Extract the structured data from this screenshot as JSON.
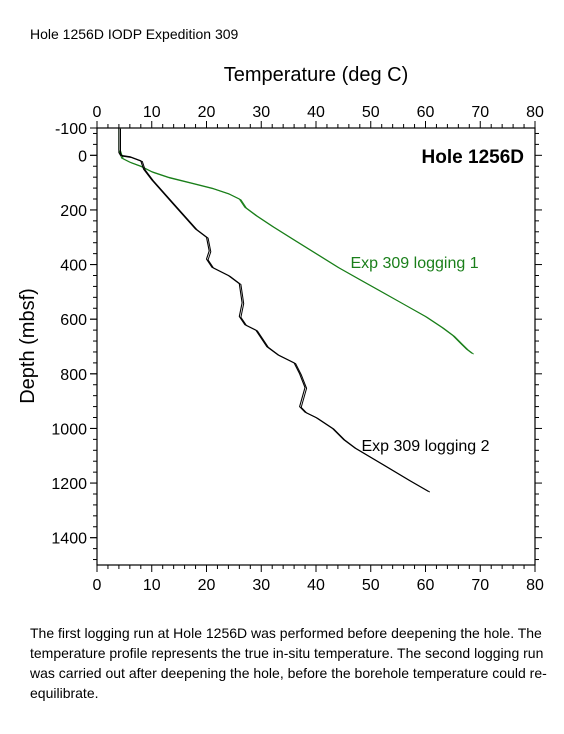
{
  "page": {
    "header": "Hole 1256D IODP Expedition 309",
    "caption": "The first logging run at Hole 1256D was performed before deepening the hole. The temperature profile represents the true in-situ temperature. The second logging run was carried out after deepening the hole, before the borehole temperature could re-equilibrate."
  },
  "chart_data": {
    "type": "line",
    "title": "Hole 1256D",
    "xlabel": "Temperature (deg C)",
    "ylabel": "Depth (mbsf)",
    "xlim": [
      0,
      80
    ],
    "ylim": [
      -100,
      1500
    ],
    "y_inverted": true,
    "x_ticks": [
      0,
      10,
      20,
      30,
      40,
      50,
      60,
      70,
      80
    ],
    "y_ticks": [
      -100,
      0,
      200,
      400,
      600,
      800,
      1000,
      1200,
      1400
    ],
    "x_axes": [
      "top",
      "bottom"
    ],
    "grid": false,
    "series": [
      {
        "name": "Exp 309 logging 1",
        "color": "#1a7f1a",
        "x": [
          4,
          4,
          4.5,
          6,
          8,
          10,
          13,
          17,
          21,
          24,
          26,
          27,
          29,
          32,
          36,
          40,
          44,
          48,
          52,
          56,
          60,
          63,
          65,
          66.5,
          67.5,
          68.5
        ],
        "y": [
          -100,
          -20,
          10,
          25,
          40,
          60,
          80,
          100,
          120,
          140,
          160,
          190,
          220,
          260,
          310,
          360,
          410,
          455,
          500,
          545,
          590,
          630,
          660,
          690,
          710,
          725
        ]
      },
      {
        "name": "Exp 309 logging 2",
        "color": "#000000",
        "x": [
          4,
          4,
          4.3,
          6,
          8,
          8.5,
          10,
          14,
          18,
          20,
          20.5,
          20,
          21,
          24,
          26,
          26.5,
          26,
          27,
          29,
          30,
          31,
          33,
          36,
          37,
          38,
          37,
          38,
          40,
          43,
          45,
          47,
          52,
          57,
          60.5
        ],
        "y": [
          -100,
          -10,
          0,
          5,
          20,
          50,
          90,
          180,
          270,
          300,
          350,
          380,
          410,
          440,
          470,
          540,
          590,
          620,
          640,
          670,
          700,
          730,
          760,
          800,
          850,
          920,
          940,
          960,
          1000,
          1040,
          1070,
          1130,
          1190,
          1230
        ]
      }
    ],
    "annotations": [
      {
        "text": "Exp 309 logging 1",
        "x": 58,
        "y": 395,
        "color": "#1a7f1a"
      },
      {
        "text": "Exp 309 logging 2",
        "x": 60,
        "y": 1065,
        "color": "#000000"
      }
    ]
  }
}
